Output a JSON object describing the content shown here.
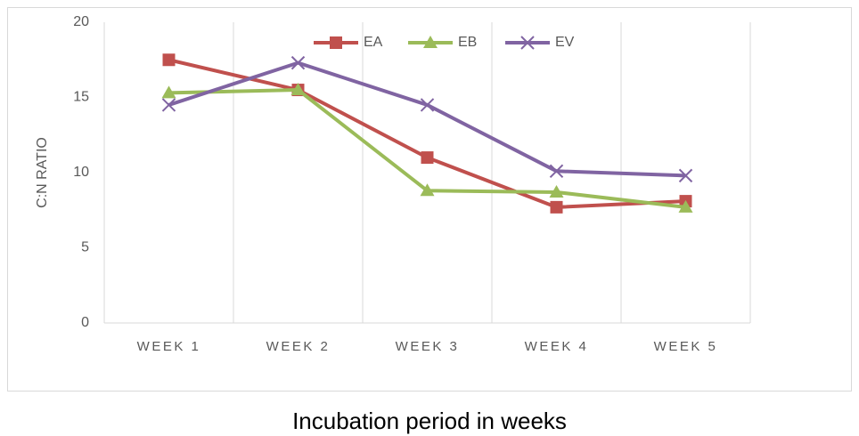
{
  "chart_data": {
    "type": "line",
    "x_label": "Incubation period in weeks",
    "y_label": "C:N RATIO",
    "categories": [
      "WEEK 1",
      "WEEK 2",
      "WEEK 3",
      "WEEK 4",
      "WEEK 5"
    ],
    "series": [
      {
        "name": "EA",
        "color": "#c0504d",
        "marker": "square",
        "values": [
          17.5,
          15.5,
          11.0,
          7.7,
          8.1
        ]
      },
      {
        "name": "EB",
        "color": "#9bbb59",
        "marker": "triangle",
        "values": [
          15.3,
          15.5,
          8.8,
          8.7,
          7.7
        ]
      },
      {
        "name": "EV",
        "color": "#8064a2",
        "marker": "x",
        "values": [
          14.5,
          17.3,
          14.5,
          10.1,
          9.8
        ]
      }
    ],
    "ylim": [
      0,
      20
    ],
    "yticks": [
      0,
      5,
      10,
      15,
      20
    ],
    "grid": "x",
    "legend": "top"
  }
}
